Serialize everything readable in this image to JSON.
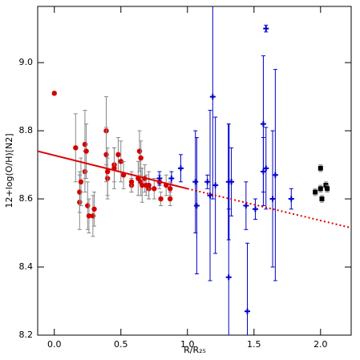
{
  "chart_data": {
    "type": "scatter",
    "xlabel": "R/R₂₅",
    "ylabel": "12+log(O/H)[N2]",
    "xlim": [
      -0.125,
      2.23
    ],
    "ylim": [
      8.2,
      9.165
    ],
    "xticks": [
      {
        "value": 0,
        "label": "0.0"
      },
      {
        "value": 0.5,
        "label": "0.5"
      },
      {
        "value": 1,
        "label": "1.0"
      },
      {
        "value": 1.5,
        "label": "1.5"
      },
      {
        "value": 2,
        "label": "2.0"
      }
    ],
    "yticks": [
      8.2,
      8.4,
      8.6,
      8.8,
      {
        "value": 9,
        "label": "9.0"
      }
    ],
    "series": [
      {
        "marker": "circle",
        "color": "#d40000",
        "x": [
          0,
          0.16,
          0.19,
          0.19,
          0.2,
          0.23,
          0.23,
          0.24,
          0.25,
          0.26,
          0.29,
          0.3,
          0.39,
          0.39,
          0.4,
          0.4,
          0.45,
          0.45,
          0.48,
          0.5,
          0.52,
          0.58,
          0.58,
          0.63,
          0.64,
          0.65,
          0.65,
          0.66,
          0.68,
          0.69,
          0.71,
          0.71,
          0.75,
          0.79,
          0.8,
          0.84,
          0.87,
          0.87
        ],
        "values": [
          8.91,
          8.75,
          8.59,
          8.62,
          8.65,
          8.68,
          8.76,
          8.74,
          8.58,
          8.55,
          8.55,
          8.57,
          8.8,
          8.73,
          8.66,
          8.68,
          8.7,
          8.69,
          8.73,
          8.71,
          8.67,
          8.64,
          8.65,
          8.66,
          8.74,
          8.72,
          8.65,
          8.64,
          8.66,
          8.64,
          8.63,
          8.64,
          8.63,
          8.65,
          8.6,
          8.64,
          8.63,
          8.6
        ],
        "errors": [
          0.005,
          0.1,
          0.08,
          0.06,
          0.07,
          0.06,
          0.1,
          0.08,
          0.07,
          0.05,
          0.06,
          0.05,
          0.1,
          0.08,
          0.06,
          0.07,
          0.05,
          0.06,
          0.05,
          0.06,
          0.04,
          0.02,
          0.03,
          0.05,
          0.06,
          0.05,
          0.04,
          0.05,
          0.04,
          0.03,
          0.03,
          0.04,
          0.03,
          0.02,
          0.02,
          0.03,
          0.02,
          0.02
        ]
      },
      {
        "marker": "plus",
        "color": "#0000cc",
        "x": [
          0.79,
          0.88,
          0.95,
          1.06,
          1.07,
          1.15,
          1.17,
          1.19,
          1.21,
          1.31,
          1.31,
          1.33,
          1.44,
          1.45,
          1.51,
          1.57,
          1.57,
          1.59,
          1.59,
          1.64,
          1.66,
          1.78
        ],
        "values": [
          8.66,
          8.66,
          8.69,
          8.65,
          8.58,
          8.65,
          8.61,
          8.9,
          8.64,
          8.65,
          8.37,
          8.65,
          8.58,
          8.27,
          8.57,
          8.82,
          8.68,
          9.1,
          8.69,
          8.6,
          8.67,
          8.6
        ],
        "errors": [
          0.02,
          0.02,
          0.04,
          0.15,
          0.2,
          0.02,
          0.25,
          0.3,
          0.2,
          0.17,
          0.2,
          0.1,
          0.07,
          0.2,
          0.03,
          0.2,
          0.1,
          0.01,
          0.12,
          0.2,
          0.31,
          0.03
        ]
      },
      {
        "marker": "square",
        "color": "#000000",
        "x": [
          1.96,
          2.0,
          2.0,
          2.01,
          2.04,
          2.05
        ],
        "values": [
          8.62,
          8.63,
          8.69,
          8.6,
          8.64,
          8.63
        ],
        "errors": [
          0.01,
          0.01,
          0.01,
          0.01,
          0.01,
          0.01
        ]
      },
      {
        "marker": "line",
        "style": "solid",
        "color": "#e00000",
        "x": [
          -0.125,
          1.0
        ],
        "values": [
          8.74,
          8.63
        ]
      },
      {
        "marker": "line",
        "style": "dotted",
        "color": "#e00000",
        "x": [
          1.0,
          2.23
        ],
        "values": [
          8.63,
          8.515
        ]
      }
    ]
  }
}
